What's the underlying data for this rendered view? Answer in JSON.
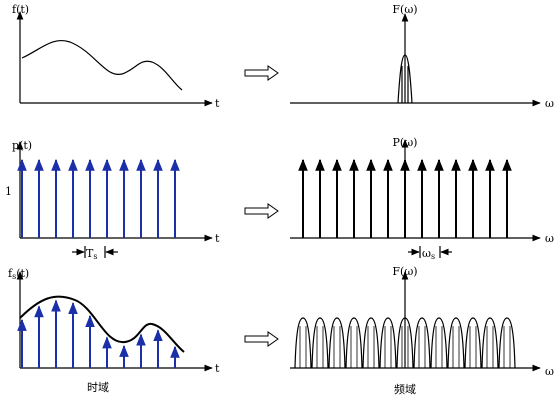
{
  "panels": {
    "time_original": {
      "ylabel": "f(t)",
      "xlabel": "t"
    },
    "freq_original": {
      "ylabel": "F(ω)",
      "xlabel": "ω"
    },
    "time_pulse": {
      "ylabel": "p(t)",
      "xlabel": "t",
      "level": "1",
      "period": {
        "main": "T",
        "sub": "s"
      }
    },
    "freq_pulse": {
      "ylabel": "P(ω)",
      "xlabel": "ω",
      "period": {
        "main": "ω",
        "sub": "s"
      }
    },
    "time_sampled": {
      "ylabel": {
        "main": "f",
        "sub": "s",
        "rest": "(t)"
      },
      "xlabel": "t",
      "caption": "时域"
    },
    "freq_sampled": {
      "ylabel": "F(ω)",
      "xlabel": "ω",
      "caption": "频域"
    }
  }
}
